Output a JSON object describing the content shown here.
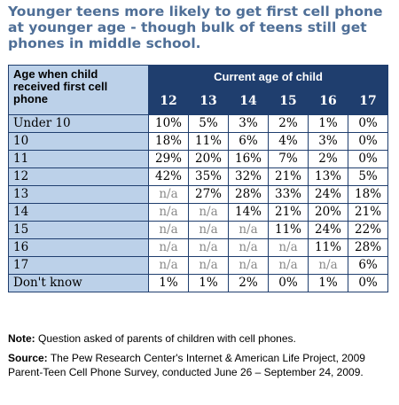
{
  "title": "Younger teens more likely to get first cell phone at younger age - though bulk of teens still get phones in middle school.",
  "note_label": "Note:",
  "note_text": "Question asked of parents of children with cell phones.",
  "source_label": "Source:",
  "source_text": "The Pew Research Center's Internet & American Life Project, 2009 Parent-Teen Cell Phone Survey, conducted June 26 – September 24, 2009.",
  "chart_data": {
    "type": "table",
    "row_header": "Age when child received first cell phone",
    "column_group_header": "Current age of child",
    "columns": [
      "12",
      "13",
      "14",
      "15",
      "16",
      "17"
    ],
    "rows": [
      {
        "label": "Under 10",
        "values": [
          "10%",
          "5%",
          "3%",
          "2%",
          "1%",
          "0%"
        ]
      },
      {
        "label": "10",
        "values": [
          "18%",
          "11%",
          "6%",
          "4%",
          "3%",
          "0%"
        ]
      },
      {
        "label": "11",
        "values": [
          "29%",
          "20%",
          "16%",
          "7%",
          "2%",
          "0%"
        ]
      },
      {
        "label": "12",
        "values": [
          "42%",
          "35%",
          "32%",
          "21%",
          "13%",
          "5%"
        ]
      },
      {
        "label": "13",
        "values": [
          "n/a",
          "27%",
          "28%",
          "33%",
          "24%",
          "18%"
        ]
      },
      {
        "label": "14",
        "values": [
          "n/a",
          "n/a",
          "14%",
          "21%",
          "20%",
          "21%"
        ]
      },
      {
        "label": "15",
        "values": [
          "n/a",
          "n/a",
          "n/a",
          "11%",
          "24%",
          "22%"
        ]
      },
      {
        "label": "16",
        "values": [
          "n/a",
          "n/a",
          "n/a",
          "n/a",
          "11%",
          "28%"
        ]
      },
      {
        "label": "17",
        "values": [
          "n/a",
          "n/a",
          "n/a",
          "n/a",
          "n/a",
          "6%"
        ]
      },
      {
        "label": "Don't know",
        "values": [
          "1%",
          "1%",
          "2%",
          "0%",
          "1%",
          "0%"
        ]
      }
    ]
  }
}
